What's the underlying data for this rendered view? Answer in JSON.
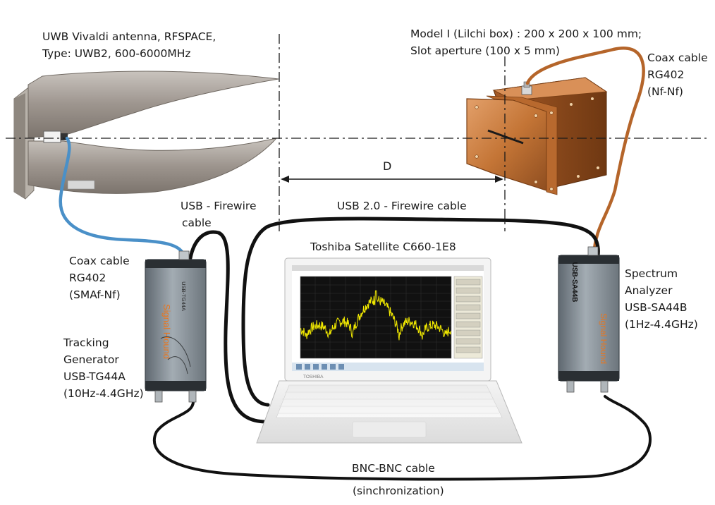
{
  "antenna_label": [
    "UWB Vivaldi antenna, RFSPACE,",
    "Type: UWB2, 600-6000MHz"
  ],
  "model_label": [
    "Model I (Lilchi box) : 200 x 200 x 100 mm;",
    "Slot aperture (100 x 5 mm)"
  ],
  "coax_right_label": [
    "Coax cable",
    "RG402",
    "(Nf-Nf)"
  ],
  "distance_label": "D",
  "usb_firewire_label": [
    "USB - Firewire",
    "cable"
  ],
  "usb20_label": "USB 2.0 - Firewire cable",
  "laptop_label": "Toshiba Satellite C660-1E8",
  "coax_left_label": [
    "Coax cable",
    "RG402",
    "(SMAf-Nf)"
  ],
  "tracking_label": [
    "Tracking",
    "Generator",
    "USB-TG44A",
    "(10Hz-4.4GHz)"
  ],
  "analyzer_label": [
    "Spectrum",
    "Analyzer",
    "USB-SA44B",
    "(1Hz-4.4GHz)"
  ],
  "bnc_label": "BNC-BNC cable",
  "sync_label": "(sinchronization)",
  "laptop_brand": "TOSHIBA",
  "tg_device_text": "USB-TG44A",
  "sa_device_text": "USB-SA44B",
  "colors": {
    "blue_cable": "#4a90c8",
    "copper_cable": "#b5652a",
    "black_cable": "#111111",
    "copper_box": "#c8783a",
    "antenna_metal": "#a09890",
    "device_body": "#7a848c",
    "spectrum_trace": "#f2ea00",
    "screen_bg": "#111111"
  }
}
